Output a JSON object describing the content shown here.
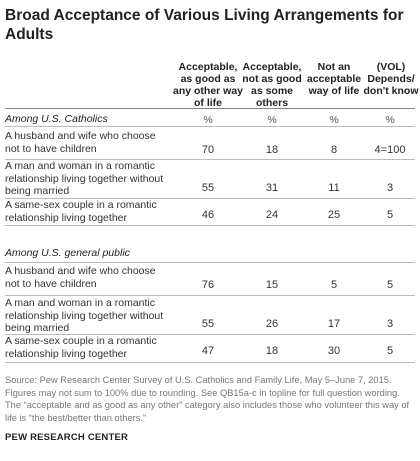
{
  "title": "Broad Acceptance of Various Living Arrangements for Adults",
  "columns": [
    "Acceptable, as good as any other way of life",
    "Acceptable, not as good as some others",
    "Not an acceptable way of life",
    "(VOL) Depends/ don't know"
  ],
  "pct_label": "%",
  "groups": [
    {
      "label": "Among U.S. Catholics",
      "rows": [
        {
          "label": "A husband and wife who choose not to have children",
          "values": [
            "70",
            "18",
            "8",
            "4=100"
          ]
        },
        {
          "label": "A man and woman in a romantic relationship living together without being married",
          "values": [
            "55",
            "31",
            "11",
            "3"
          ]
        },
        {
          "label": "A same-sex couple in a romantic relationship living together",
          "values": [
            "46",
            "24",
            "25",
            "5"
          ]
        }
      ]
    },
    {
      "label": "Among U.S. general public",
      "rows": [
        {
          "label": "A husband and wife who choose not to have children",
          "values": [
            "76",
            "15",
            "5",
            "5"
          ]
        },
        {
          "label": "A man and woman in a romantic relationship living together without being married",
          "values": [
            "55",
            "26",
            "17",
            "3"
          ]
        },
        {
          "label": "A same-sex couple in a romantic relationship living together",
          "values": [
            "47",
            "18",
            "30",
            "5"
          ]
        }
      ]
    }
  ],
  "source": "Source: Pew Research Center Survey of U.S. Catholics and Family Life, May 5–June 7, 2015. Figures may not sum to 100% due to rounding. See QB15a-c in topline for full question wording. The “acceptable and as good as any other” category also includes those who volunteer this way of life is “the best/better than others.”",
  "credit": "PEW RESEARCH CENTER"
}
